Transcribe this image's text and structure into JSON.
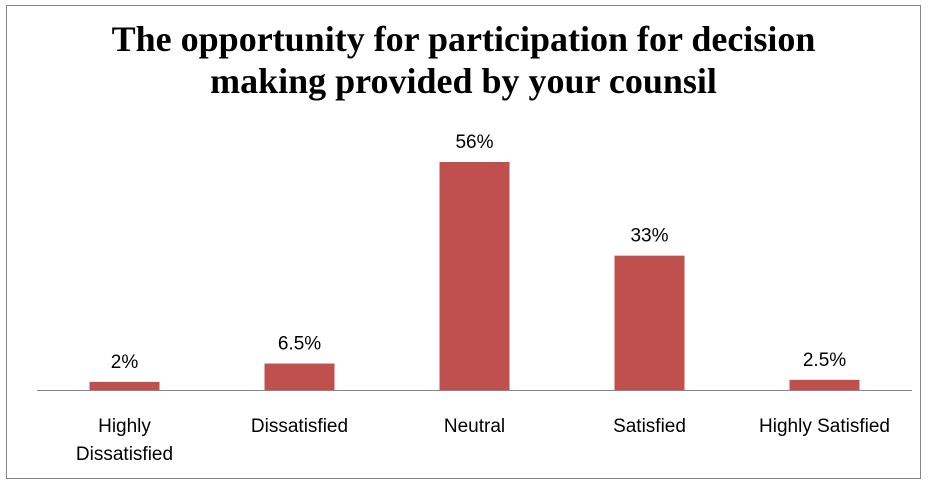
{
  "chart_data": {
    "type": "bar",
    "title_lines": [
      "The opportunity for participation for decision",
      "making provided by your counsil"
    ],
    "categories": [
      [
        "Highly",
        "Dissatisfied"
      ],
      [
        "Dissatisfied"
      ],
      [
        "Neutral"
      ],
      [
        "Satisfied"
      ],
      [
        "Highly Satisfied"
      ]
    ],
    "values": [
      2,
      6.5,
      56,
      33,
      2.5
    ],
    "data_labels": [
      "2%",
      "6.5%",
      "56%",
      "33%",
      "2.5%"
    ],
    "xlabel": "",
    "ylabel": "",
    "ylim": [
      0,
      60
    ],
    "grid": false,
    "legend": "none",
    "colors": {
      "bar": "#C0504D",
      "axis": "#868686"
    }
  }
}
